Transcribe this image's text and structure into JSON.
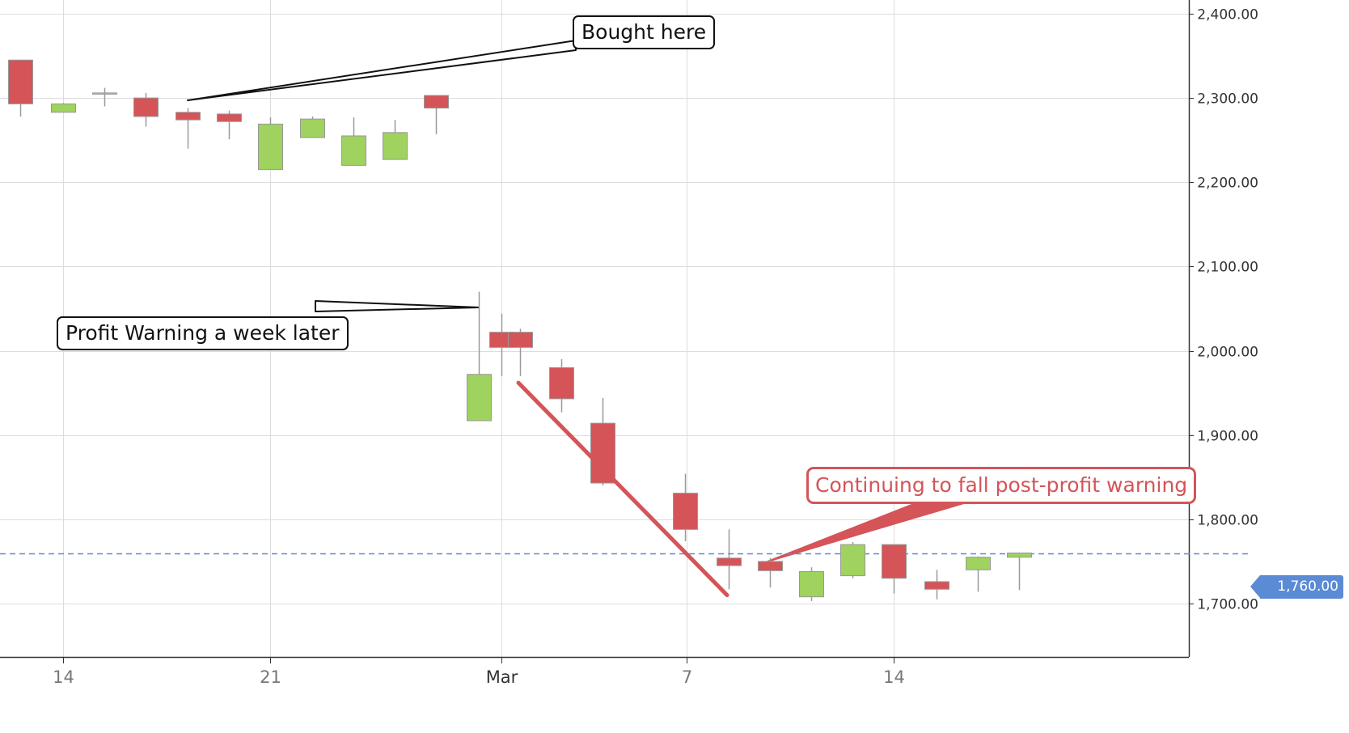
{
  "colors": {
    "up": "#9fd25e",
    "down": "#d45458",
    "grid": "#dddddd",
    "wick": "#999999",
    "last_price": "#5b8bd4",
    "annotation_red": "#d45458"
  },
  "chart_data": {
    "type": "candlestick",
    "title": "",
    "xlabel": "",
    "ylabel": "",
    "ylim": [
      1630,
      2410
    ],
    "grid": true,
    "y_ticks": [
      1700,
      1800,
      1900,
      2000,
      2100,
      2200,
      2300,
      2400
    ],
    "y_tick_labels": [
      "1,700.00",
      "1,800.00",
      "1,900.00",
      "2,000.00",
      "2,100.00",
      "2,200.00",
      "2,300.00",
      "2,400.00"
    ],
    "x_ticks": [
      {
        "label": "14",
        "date": "02-14"
      },
      {
        "label": "21",
        "date": "02-21"
      },
      {
        "label": "Mar",
        "date": "03-01"
      },
      {
        "label": "7",
        "date": "03-07"
      },
      {
        "label": "14",
        "date": "03-14"
      }
    ],
    "last_price": 1760,
    "last_price_label": "1,760.00",
    "candles": [
      {
        "date": "02-12",
        "open": 2345,
        "high": 2345,
        "low": 2278,
        "close": 2293
      },
      {
        "date": "02-14",
        "open": 2283,
        "high": 2294,
        "low": 2283,
        "close": 2293
      },
      {
        "date": "02-16",
        "open": 2306,
        "high": 2312,
        "low": 2290,
        "close": 2306
      },
      {
        "date": "02-17",
        "open": 2300,
        "high": 2306,
        "low": 2266,
        "close": 2278
      },
      {
        "date": "02-18",
        "open": 2283,
        "high": 2288,
        "low": 2240,
        "close": 2274
      },
      {
        "date": "02-19",
        "open": 2281,
        "high": 2285,
        "low": 2251,
        "close": 2272
      },
      {
        "date": "02-21",
        "open": 2215,
        "high": 2277,
        "low": 2215,
        "close": 2269
      },
      {
        "date": "02-22",
        "open": 2253,
        "high": 2278,
        "low": 2253,
        "close": 2275
      },
      {
        "date": "02-23",
        "open": 2220,
        "high": 2277,
        "low": 2220,
        "close": 2255
      },
      {
        "date": "02-24",
        "open": 2227,
        "high": 2274,
        "low": 2227,
        "close": 2259
      },
      {
        "date": "02-25",
        "open": 2303,
        "high": 2303,
        "low": 2257,
        "close": 2288
      },
      {
        "date": "02-28",
        "open": 1917,
        "high": 2070,
        "low": 1917,
        "close": 1972
      },
      {
        "date": "03-01",
        "open": 2022,
        "high": 2044,
        "low": 1970,
        "close": 2004
      },
      {
        "date": "03-02",
        "open": 2022,
        "high": 2026,
        "low": 1970,
        "close": 2004
      },
      {
        "date": "03-03",
        "open": 1980,
        "high": 1990,
        "low": 1927,
        "close": 1943
      },
      {
        "date": "03-04",
        "open": 1914,
        "high": 1944,
        "low": 1840,
        "close": 1843
      },
      {
        "date": "03-07",
        "open": 1831,
        "high": 1854,
        "low": 1774,
        "close": 1788
      },
      {
        "date": "03-08",
        "open": 1754,
        "high": 1788,
        "low": 1717,
        "close": 1745
      },
      {
        "date": "03-09",
        "open": 1750,
        "high": 1754,
        "low": 1719,
        "close": 1739
      },
      {
        "date": "03-10",
        "open": 1708,
        "high": 1743,
        "low": 1703,
        "close": 1738
      },
      {
        "date": "03-11",
        "open": 1733,
        "high": 1773,
        "low": 1730,
        "close": 1770
      },
      {
        "date": "03-14",
        "open": 1770,
        "high": 1770,
        "low": 1712,
        "close": 1730
      },
      {
        "date": "03-15",
        "open": 1726,
        "high": 1740,
        "low": 1705,
        "close": 1717
      },
      {
        "date": "03-16",
        "open": 1740,
        "high": 1756,
        "low": 1714,
        "close": 1755
      },
      {
        "date": "03-17",
        "open": 1755,
        "high": 1760,
        "low": 1716,
        "close": 1760
      }
    ],
    "annotations": [
      {
        "text": "Bought here",
        "date": "02-18",
        "price": 2298
      },
      {
        "text": "Profit Warning a week later",
        "date": "02-28",
        "price": 2070
      },
      {
        "text": "Continuing to fall post-profit warning",
        "date": "03-09",
        "price": 1775
      }
    ],
    "trend_line": {
      "from": {
        "date": "03-01",
        "price": 1962
      },
      "to": {
        "date": "03-08",
        "price": 1710
      }
    }
  }
}
